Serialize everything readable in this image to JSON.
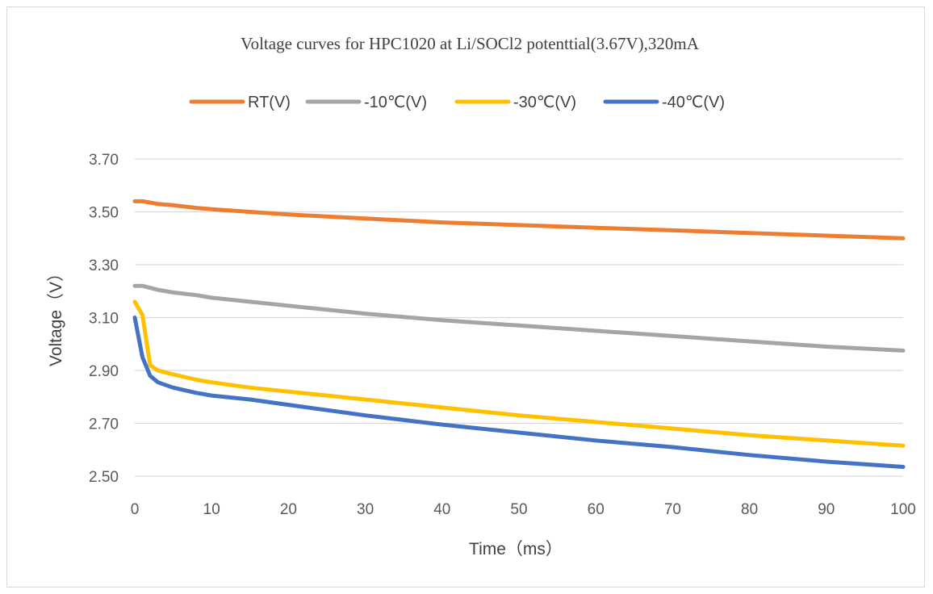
{
  "chart_data": {
    "type": "line",
    "title": "Voltage curves for HPC1020 at Li/SOCl2 potenttial(3.67V),320mA",
    "xlabel": "Time（ms）",
    "ylabel": "Voltage（V）",
    "xlim": [
      0,
      100
    ],
    "ylim": [
      2.5,
      3.7
    ],
    "x_ticks": [
      "0",
      "10",
      "20",
      "30",
      "40",
      "50",
      "60",
      "70",
      "80",
      "90",
      "100"
    ],
    "y_ticks": [
      "2.50",
      "2.70",
      "2.90",
      "3.10",
      "3.30",
      "3.50",
      "3.70"
    ],
    "grid": "horizontal",
    "legend_position": "top",
    "series": [
      {
        "name": "RT(V)",
        "color": "#ed7d31",
        "points": [
          [
            0,
            3.54
          ],
          [
            1,
            3.54
          ],
          [
            3,
            3.53
          ],
          [
            5,
            3.525
          ],
          [
            8,
            3.515
          ],
          [
            10,
            3.51
          ],
          [
            15,
            3.5
          ],
          [
            20,
            3.49
          ],
          [
            30,
            3.475
          ],
          [
            40,
            3.46
          ],
          [
            50,
            3.45
          ],
          [
            60,
            3.44
          ],
          [
            70,
            3.43
          ],
          [
            80,
            3.42
          ],
          [
            90,
            3.41
          ],
          [
            100,
            3.4
          ]
        ]
      },
      {
        "name": "-10℃(V)",
        "color": "#a5a5a5",
        "points": [
          [
            0,
            3.22
          ],
          [
            1,
            3.22
          ],
          [
            3,
            3.205
          ],
          [
            5,
            3.195
          ],
          [
            8,
            3.185
          ],
          [
            10,
            3.175
          ],
          [
            15,
            3.16
          ],
          [
            20,
            3.145
          ],
          [
            30,
            3.115
          ],
          [
            40,
            3.09
          ],
          [
            50,
            3.07
          ],
          [
            60,
            3.05
          ],
          [
            70,
            3.03
          ],
          [
            80,
            3.01
          ],
          [
            90,
            2.99
          ],
          [
            100,
            2.975
          ]
        ]
      },
      {
        "name": "-30℃(V)",
        "color": "#ffc000",
        "points": [
          [
            0,
            3.16
          ],
          [
            1,
            3.11
          ],
          [
            2,
            2.92
          ],
          [
            3,
            2.9
          ],
          [
            5,
            2.885
          ],
          [
            8,
            2.865
          ],
          [
            10,
            2.855
          ],
          [
            15,
            2.835
          ],
          [
            20,
            2.82
          ],
          [
            30,
            2.79
          ],
          [
            40,
            2.76
          ],
          [
            50,
            2.73
          ],
          [
            60,
            2.705
          ],
          [
            70,
            2.68
          ],
          [
            80,
            2.655
          ],
          [
            90,
            2.635
          ],
          [
            100,
            2.615
          ]
        ]
      },
      {
        "name": "-40℃(V)",
        "color": "#4472c4",
        "points": [
          [
            0,
            3.1
          ],
          [
            1,
            2.95
          ],
          [
            2,
            2.88
          ],
          [
            3,
            2.855
          ],
          [
            5,
            2.835
          ],
          [
            8,
            2.815
          ],
          [
            10,
            2.805
          ],
          [
            15,
            2.79
          ],
          [
            20,
            2.77
          ],
          [
            30,
            2.73
          ],
          [
            40,
            2.695
          ],
          [
            50,
            2.665
          ],
          [
            60,
            2.635
          ],
          [
            70,
            2.61
          ],
          [
            80,
            2.58
          ],
          [
            90,
            2.555
          ],
          [
            100,
            2.535
          ]
        ]
      }
    ]
  }
}
